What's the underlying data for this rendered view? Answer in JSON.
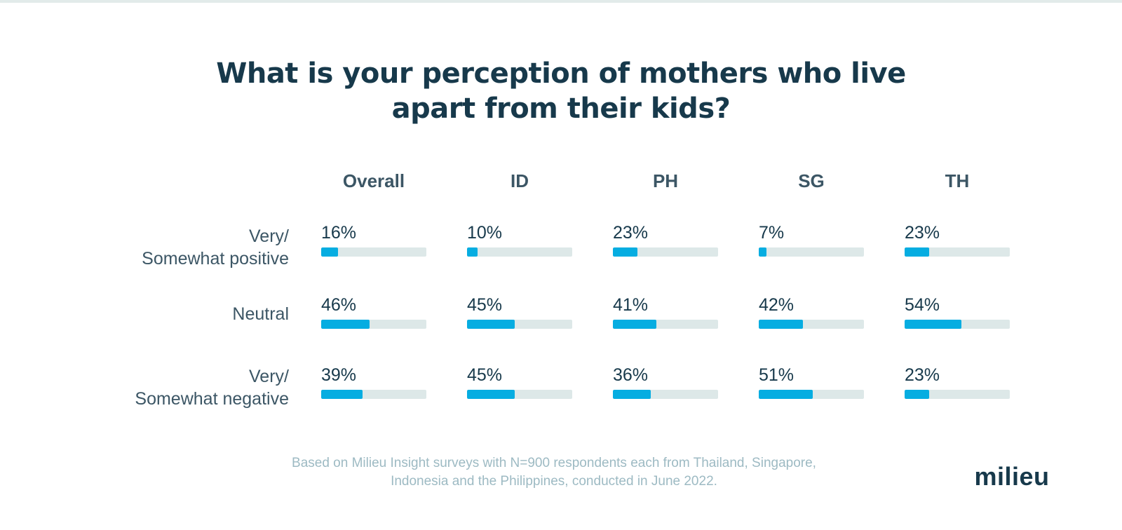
{
  "title": {
    "line1": "What is your perception of mothers who live",
    "line2": "apart from their kids?"
  },
  "chart_data": {
    "type": "table",
    "columns": [
      "Overall",
      "ID",
      "PH",
      "SG",
      "TH"
    ],
    "rows": [
      {
        "label_line1": "Very/",
        "label_line2": "Somewhat positive",
        "labels": [
          "16%",
          "10%",
          "23%",
          "7%",
          "23%"
        ],
        "values": [
          16,
          10,
          23,
          7,
          23
        ]
      },
      {
        "label_line1": "Neutral",
        "label_line2": "",
        "labels": [
          "46%",
          "45%",
          "41%",
          "42%",
          "54%"
        ],
        "values": [
          46,
          45,
          41,
          42,
          54
        ]
      },
      {
        "label_line1": "Very/",
        "label_line2": "Somewhat negative",
        "labels": [
          "39%",
          "45%",
          "36%",
          "51%",
          "23%"
        ],
        "values": [
          39,
          45,
          36,
          51,
          23
        ]
      }
    ],
    "max": 100,
    "unit": "%",
    "bar_color": "#06ade1",
    "track_color": "#dde8e8"
  },
  "footnote": {
    "line1": "Based on Milieu Insight surveys with N=900 respondents each from Thailand, Singapore,",
    "line2": "Indonesia and the Philippines, conducted in June 2022."
  },
  "logo": {
    "text": "milieu"
  },
  "colors": {
    "title": "#17394b",
    "label": "#3c5665",
    "footnote": "#9dbac3"
  }
}
